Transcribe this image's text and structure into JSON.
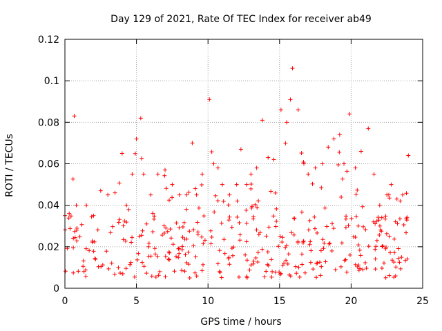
{
  "chart_data": {
    "type": "scatter",
    "title": "Day 129 of 2021, Rate Of TEC Index for receiver ab49",
    "xlabel": "GPS time / hours",
    "ylabel": "ROTI / TECUs",
    "xlim": [
      0,
      25
    ],
    "ylim": [
      0,
      0.12
    ],
    "xticks": [
      0,
      5,
      10,
      15,
      20,
      25
    ],
    "yticks": [
      0,
      0.02,
      0.04,
      0.06,
      0.08,
      0.1,
      0.12
    ],
    "grid": true,
    "marker": "+",
    "color": "#ff0000",
    "series": [
      {
        "x_range": [
          0,
          24
        ],
        "typical_range": [
          0.005,
          0.035
        ],
        "envelope": [
          [
            0.0,
            0.035
          ],
          [
            0.3,
            0.036
          ],
          [
            0.65,
            0.083
          ],
          [
            0.8,
            0.04
          ],
          [
            1.5,
            0.04
          ],
          [
            2.0,
            0.035
          ],
          [
            2.5,
            0.047
          ],
          [
            3.0,
            0.045
          ],
          [
            3.5,
            0.046
          ],
          [
            4.0,
            0.065
          ],
          [
            4.3,
            0.04
          ],
          [
            4.7,
            0.055
          ],
          [
            5.0,
            0.072
          ],
          [
            5.3,
            0.082
          ],
          [
            5.5,
            0.055
          ],
          [
            6.0,
            0.045
          ],
          [
            6.5,
            0.055
          ],
          [
            7.0,
            0.057
          ],
          [
            7.5,
            0.05
          ],
          [
            8.0,
            0.045
          ],
          [
            8.5,
            0.045
          ],
          [
            8.9,
            0.07
          ],
          [
            9.2,
            0.045
          ],
          [
            9.6,
            0.055
          ],
          [
            10.1,
            0.091
          ],
          [
            10.4,
            0.06
          ],
          [
            10.7,
            0.058
          ],
          [
            11.0,
            0.05
          ],
          [
            11.5,
            0.045
          ],
          [
            12.0,
            0.05
          ],
          [
            12.3,
            0.067
          ],
          [
            12.7,
            0.05
          ],
          [
            13.0,
            0.055
          ],
          [
            13.4,
            0.058
          ],
          [
            13.8,
            0.081
          ],
          [
            14.2,
            0.063
          ],
          [
            14.6,
            0.062
          ],
          [
            15.1,
            0.086
          ],
          [
            15.5,
            0.08
          ],
          [
            15.9,
            0.106
          ],
          [
            16.3,
            0.086
          ],
          [
            16.7,
            0.06
          ],
          [
            17.0,
            0.055
          ],
          [
            17.5,
            0.058
          ],
          [
            18.0,
            0.06
          ],
          [
            18.4,
            0.068
          ],
          [
            18.8,
            0.072
          ],
          [
            19.2,
            0.074
          ],
          [
            19.5,
            0.06
          ],
          [
            19.9,
            0.084
          ],
          [
            20.3,
            0.058
          ],
          [
            20.7,
            0.066
          ],
          [
            21.2,
            0.077
          ],
          [
            21.6,
            0.055
          ],
          [
            22.0,
            0.04
          ],
          [
            22.5,
            0.045
          ],
          [
            22.8,
            0.05
          ],
          [
            23.2,
            0.043
          ],
          [
            23.6,
            0.045
          ],
          [
            24.0,
            0.064
          ]
        ]
      }
    ]
  }
}
